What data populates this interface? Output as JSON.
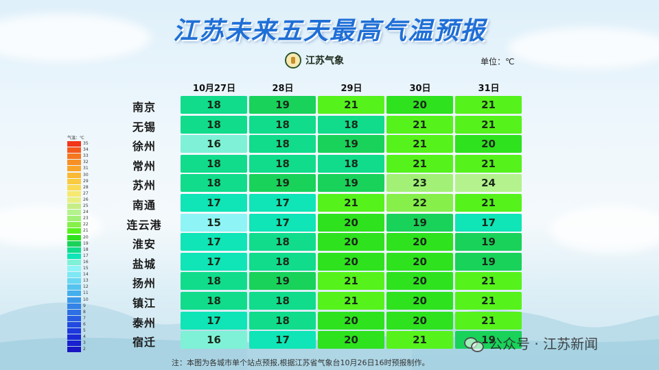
{
  "title": "江苏未来五天最高气温预报",
  "logo_text": "江苏气象",
  "unit": "单位：℃",
  "dates": [
    "10月27日",
    "28日",
    "29日",
    "30日",
    "31日"
  ],
  "cities": [
    {
      "name": "南京",
      "temps": [
        18,
        19,
        21,
        20,
        21
      ]
    },
    {
      "name": "无锡",
      "temps": [
        18,
        18,
        18,
        21,
        21
      ]
    },
    {
      "name": "徐州",
      "temps": [
        16,
        18,
        19,
        21,
        20
      ]
    },
    {
      "name": "常州",
      "temps": [
        18,
        18,
        18,
        21,
        21
      ]
    },
    {
      "name": "苏州",
      "temps": [
        18,
        19,
        19,
        23,
        24
      ]
    },
    {
      "name": "南通",
      "temps": [
        17,
        17,
        21,
        22,
        21
      ]
    },
    {
      "name": "连云港",
      "temps": [
        15,
        17,
        20,
        19,
        17
      ]
    },
    {
      "name": "淮安",
      "temps": [
        17,
        18,
        20,
        20,
        19
      ]
    },
    {
      "name": "盐城",
      "temps": [
        17,
        18,
        20,
        20,
        19
      ]
    },
    {
      "name": "扬州",
      "temps": [
        18,
        19,
        21,
        20,
        21
      ]
    },
    {
      "name": "镇江",
      "temps": [
        18,
        18,
        21,
        20,
        21
      ]
    },
    {
      "name": "泰州",
      "temps": [
        17,
        18,
        20,
        20,
        21
      ]
    },
    {
      "name": "宿迁",
      "temps": [
        16,
        17,
        20,
        21,
        19
      ]
    }
  ],
  "legend": {
    "title": "气温：℃",
    "values": [
      35,
      34,
      33,
      32,
      31,
      30,
      29,
      28,
      27,
      26,
      25,
      24,
      23,
      22,
      21,
      20,
      19,
      18,
      17,
      16,
      15,
      14,
      13,
      12,
      11,
      10,
      9,
      8,
      7,
      6,
      5,
      4,
      3,
      2
    ],
    "colors": {
      "35": "#f2361a",
      "34": "#f45a1c",
      "33": "#f5781f",
      "32": "#f79024",
      "31": "#f8a52a",
      "30": "#f9b934",
      "29": "#facb40",
      "28": "#fadb55",
      "27": "#f6e870",
      "26": "#e8ef82",
      "25": "#c6ee86",
      "24": "#b4f28e",
      "23": "#a2f176",
      "22": "#86ef4a",
      "21": "#56f21c",
      "20": "#2ee21e",
      "19": "#19d25a",
      "18": "#10dc8c",
      "17": "#0fe5b6",
      "16": "#7ff1d6",
      "15": "#8ff4f5",
      "14": "#7ee8f4",
      "13": "#69d7f2",
      "12": "#55c3ef",
      "11": "#45aeec",
      "10": "#3a98e8",
      "9": "#3483e6",
      "8": "#2e6fe4",
      "7": "#285be2",
      "6": "#2249e0",
      "5": "#1d38dc",
      "4": "#1a2bd6",
      "3": "#1820cf",
      "2": "#1a16c4"
    }
  },
  "note": "注：本图为各城市单个站点预报,根据江苏省气象台10月26日16时预报制作。",
  "watermark": "公众号 · 江苏新闻"
}
